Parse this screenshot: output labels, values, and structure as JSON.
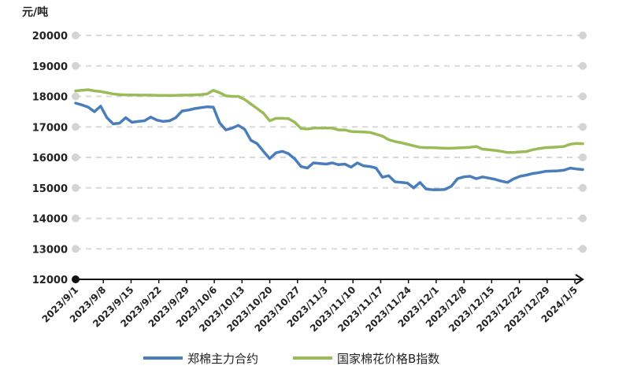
{
  "chart_data": {
    "type": "line",
    "title": "",
    "unit_label": "元/吨",
    "xlabel": "",
    "ylabel": "元/吨",
    "ylim": [
      12000,
      20000
    ],
    "yticks": [
      "12000",
      "13000",
      "14000",
      "15000",
      "16000",
      "17000",
      "18000",
      "19000",
      "20000"
    ],
    "xticks": [
      "2023/9/1",
      "2023/9/8",
      "2023/9/15",
      "2023/9/22",
      "2023/9/29",
      "2023/10/6",
      "2023/10/13",
      "2023/10/20",
      "2023/10/27",
      "2023/11/3",
      "2023/11/10",
      "2023/11/17",
      "2023/11/24",
      "2023/12/1",
      "2023/12/8",
      "2023/12/15",
      "2023/12/22",
      "2023/12/29",
      "2024/1/5"
    ],
    "grid": true,
    "legend_position": "bottom",
    "series": [
      {
        "name": "郑棉主力合约",
        "color": "#4a7ebb",
        "points": [
          [
            0,
            17780
          ],
          [
            1,
            17720
          ],
          [
            2,
            17650
          ],
          [
            3,
            17500
          ],
          [
            4,
            17680
          ],
          [
            5,
            17300
          ],
          [
            6,
            17100
          ],
          [
            7,
            17120
          ],
          [
            8,
            17300
          ],
          [
            9,
            17150
          ],
          [
            10,
            17180
          ],
          [
            11,
            17200
          ],
          [
            12,
            17320
          ],
          [
            13,
            17220
          ],
          [
            14,
            17180
          ],
          [
            15,
            17200
          ],
          [
            16,
            17300
          ],
          [
            17,
            17520
          ],
          [
            18,
            17550
          ],
          [
            19,
            17600
          ],
          [
            20,
            17630
          ],
          [
            21,
            17660
          ],
          [
            22,
            17650
          ],
          [
            23,
            17130
          ],
          [
            24,
            16900
          ],
          [
            25,
            16960
          ],
          [
            26,
            17050
          ],
          [
            27,
            16920
          ],
          [
            28,
            16560
          ],
          [
            29,
            16450
          ],
          [
            30,
            16200
          ],
          [
            31,
            15960
          ],
          [
            32,
            16150
          ],
          [
            33,
            16200
          ],
          [
            34,
            16120
          ],
          [
            35,
            15950
          ],
          [
            36,
            15700
          ],
          [
            37,
            15650
          ],
          [
            38,
            15820
          ],
          [
            39,
            15800
          ],
          [
            40,
            15780
          ],
          [
            41,
            15820
          ],
          [
            42,
            15760
          ],
          [
            43,
            15780
          ],
          [
            44,
            15680
          ],
          [
            45,
            15820
          ],
          [
            46,
            15720
          ],
          [
            47,
            15700
          ],
          [
            48,
            15650
          ],
          [
            49,
            15350
          ],
          [
            50,
            15400
          ],
          [
            51,
            15200
          ],
          [
            52,
            15180
          ],
          [
            53,
            15160
          ],
          [
            54,
            15000
          ],
          [
            55,
            15180
          ],
          [
            56,
            14960
          ],
          [
            57,
            14940
          ],
          [
            58,
            14940
          ],
          [
            59,
            14950
          ],
          [
            60,
            15050
          ],
          [
            61,
            15300
          ],
          [
            62,
            15360
          ],
          [
            63,
            15380
          ],
          [
            64,
            15300
          ],
          [
            65,
            15360
          ],
          [
            66,
            15320
          ],
          [
            67,
            15280
          ],
          [
            68,
            15220
          ],
          [
            69,
            15180
          ],
          [
            70,
            15300
          ],
          [
            71,
            15380
          ],
          [
            72,
            15420
          ],
          [
            73,
            15470
          ],
          [
            74,
            15500
          ],
          [
            75,
            15540
          ],
          [
            76,
            15550
          ],
          [
            77,
            15560
          ],
          [
            78,
            15580
          ],
          [
            79,
            15650
          ],
          [
            80,
            15620
          ],
          [
            81,
            15600
          ]
        ]
      },
      {
        "name": "国家棉花价格B指数",
        "color": "#9bbb59",
        "points": [
          [
            0,
            18180
          ],
          [
            1,
            18200
          ],
          [
            2,
            18220
          ],
          [
            3,
            18180
          ],
          [
            4,
            18160
          ],
          [
            5,
            18120
          ],
          [
            6,
            18080
          ],
          [
            7,
            18060
          ],
          [
            8,
            18050
          ],
          [
            9,
            18050
          ],
          [
            10,
            18040
          ],
          [
            11,
            18040
          ],
          [
            12,
            18040
          ],
          [
            13,
            18030
          ],
          [
            14,
            18030
          ],
          [
            15,
            18030
          ],
          [
            16,
            18030
          ],
          [
            17,
            18040
          ],
          [
            18,
            18040
          ],
          [
            19,
            18050
          ],
          [
            20,
            18060
          ],
          [
            21,
            18080
          ],
          [
            22,
            18200
          ],
          [
            23,
            18120
          ],
          [
            24,
            18020
          ],
          [
            25,
            18000
          ],
          [
            26,
            18000
          ],
          [
            27,
            17900
          ],
          [
            28,
            17750
          ],
          [
            29,
            17600
          ],
          [
            30,
            17450
          ],
          [
            31,
            17200
          ],
          [
            32,
            17280
          ],
          [
            33,
            17280
          ],
          [
            34,
            17270
          ],
          [
            35,
            17150
          ],
          [
            36,
            16950
          ],
          [
            37,
            16930
          ],
          [
            38,
            16960
          ],
          [
            39,
            16960
          ],
          [
            40,
            16960
          ],
          [
            41,
            16960
          ],
          [
            42,
            16900
          ],
          [
            43,
            16900
          ],
          [
            44,
            16850
          ],
          [
            45,
            16840
          ],
          [
            46,
            16830
          ],
          [
            47,
            16820
          ],
          [
            48,
            16760
          ],
          [
            49,
            16700
          ],
          [
            50,
            16580
          ],
          [
            51,
            16520
          ],
          [
            52,
            16480
          ],
          [
            53,
            16430
          ],
          [
            54,
            16380
          ],
          [
            55,
            16330
          ],
          [
            56,
            16320
          ],
          [
            57,
            16320
          ],
          [
            58,
            16310
          ],
          [
            59,
            16300
          ],
          [
            60,
            16300
          ],
          [
            61,
            16310
          ],
          [
            62,
            16320
          ],
          [
            63,
            16330
          ],
          [
            64,
            16360
          ],
          [
            65,
            16270
          ],
          [
            66,
            16250
          ],
          [
            67,
            16230
          ],
          [
            68,
            16200
          ],
          [
            69,
            16160
          ],
          [
            70,
            16160
          ],
          [
            71,
            16180
          ],
          [
            72,
            16190
          ],
          [
            73,
            16250
          ],
          [
            74,
            16290
          ],
          [
            75,
            16320
          ],
          [
            76,
            16330
          ],
          [
            77,
            16340
          ],
          [
            78,
            16360
          ],
          [
            79,
            16430
          ],
          [
            80,
            16460
          ],
          [
            81,
            16450
          ]
        ]
      }
    ]
  }
}
